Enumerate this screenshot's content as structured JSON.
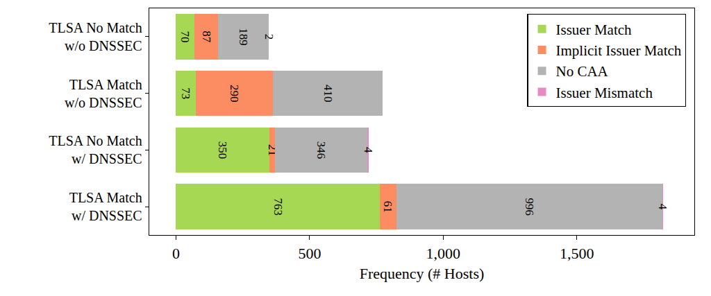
{
  "chart_data": {
    "type": "bar",
    "orientation": "horizontal",
    "stacked": true,
    "data_labels": true,
    "grid": false,
    "legend": "top right",
    "x_label": "Frequency (# Hosts)",
    "categories": [
      "TLSA No Match\nw/o DNSSEC",
      "TLSA Match\nw/o DNSSEC",
      "TLSA No Match\nw/ DNSSEC",
      "TLSA Match\nw/ DNSSEC"
    ],
    "series": [
      {
        "name": "Issuer Match",
        "color": "#a6d854",
        "values": [
          70,
          73,
          350,
          763
        ]
      },
      {
        "name": "Implicit Issuer Match",
        "color": "#fc8d62",
        "values": [
          87,
          290,
          21,
          61
        ]
      },
      {
        "name": "No CAA",
        "color": "#b3b3b3",
        "values": [
          189,
          410,
          346,
          996
        ]
      },
      {
        "name": "Issuer Mismatch",
        "color": "#e78ac3",
        "values": [
          2,
          null,
          4,
          4
        ]
      }
    ],
    "xlim": [
      -100,
      1940
    ],
    "xticks": [
      0,
      500,
      {
        "value": 1000,
        "label": "1,000"
      },
      {
        "value": 1500,
        "label": "1,500"
      }
    ]
  }
}
